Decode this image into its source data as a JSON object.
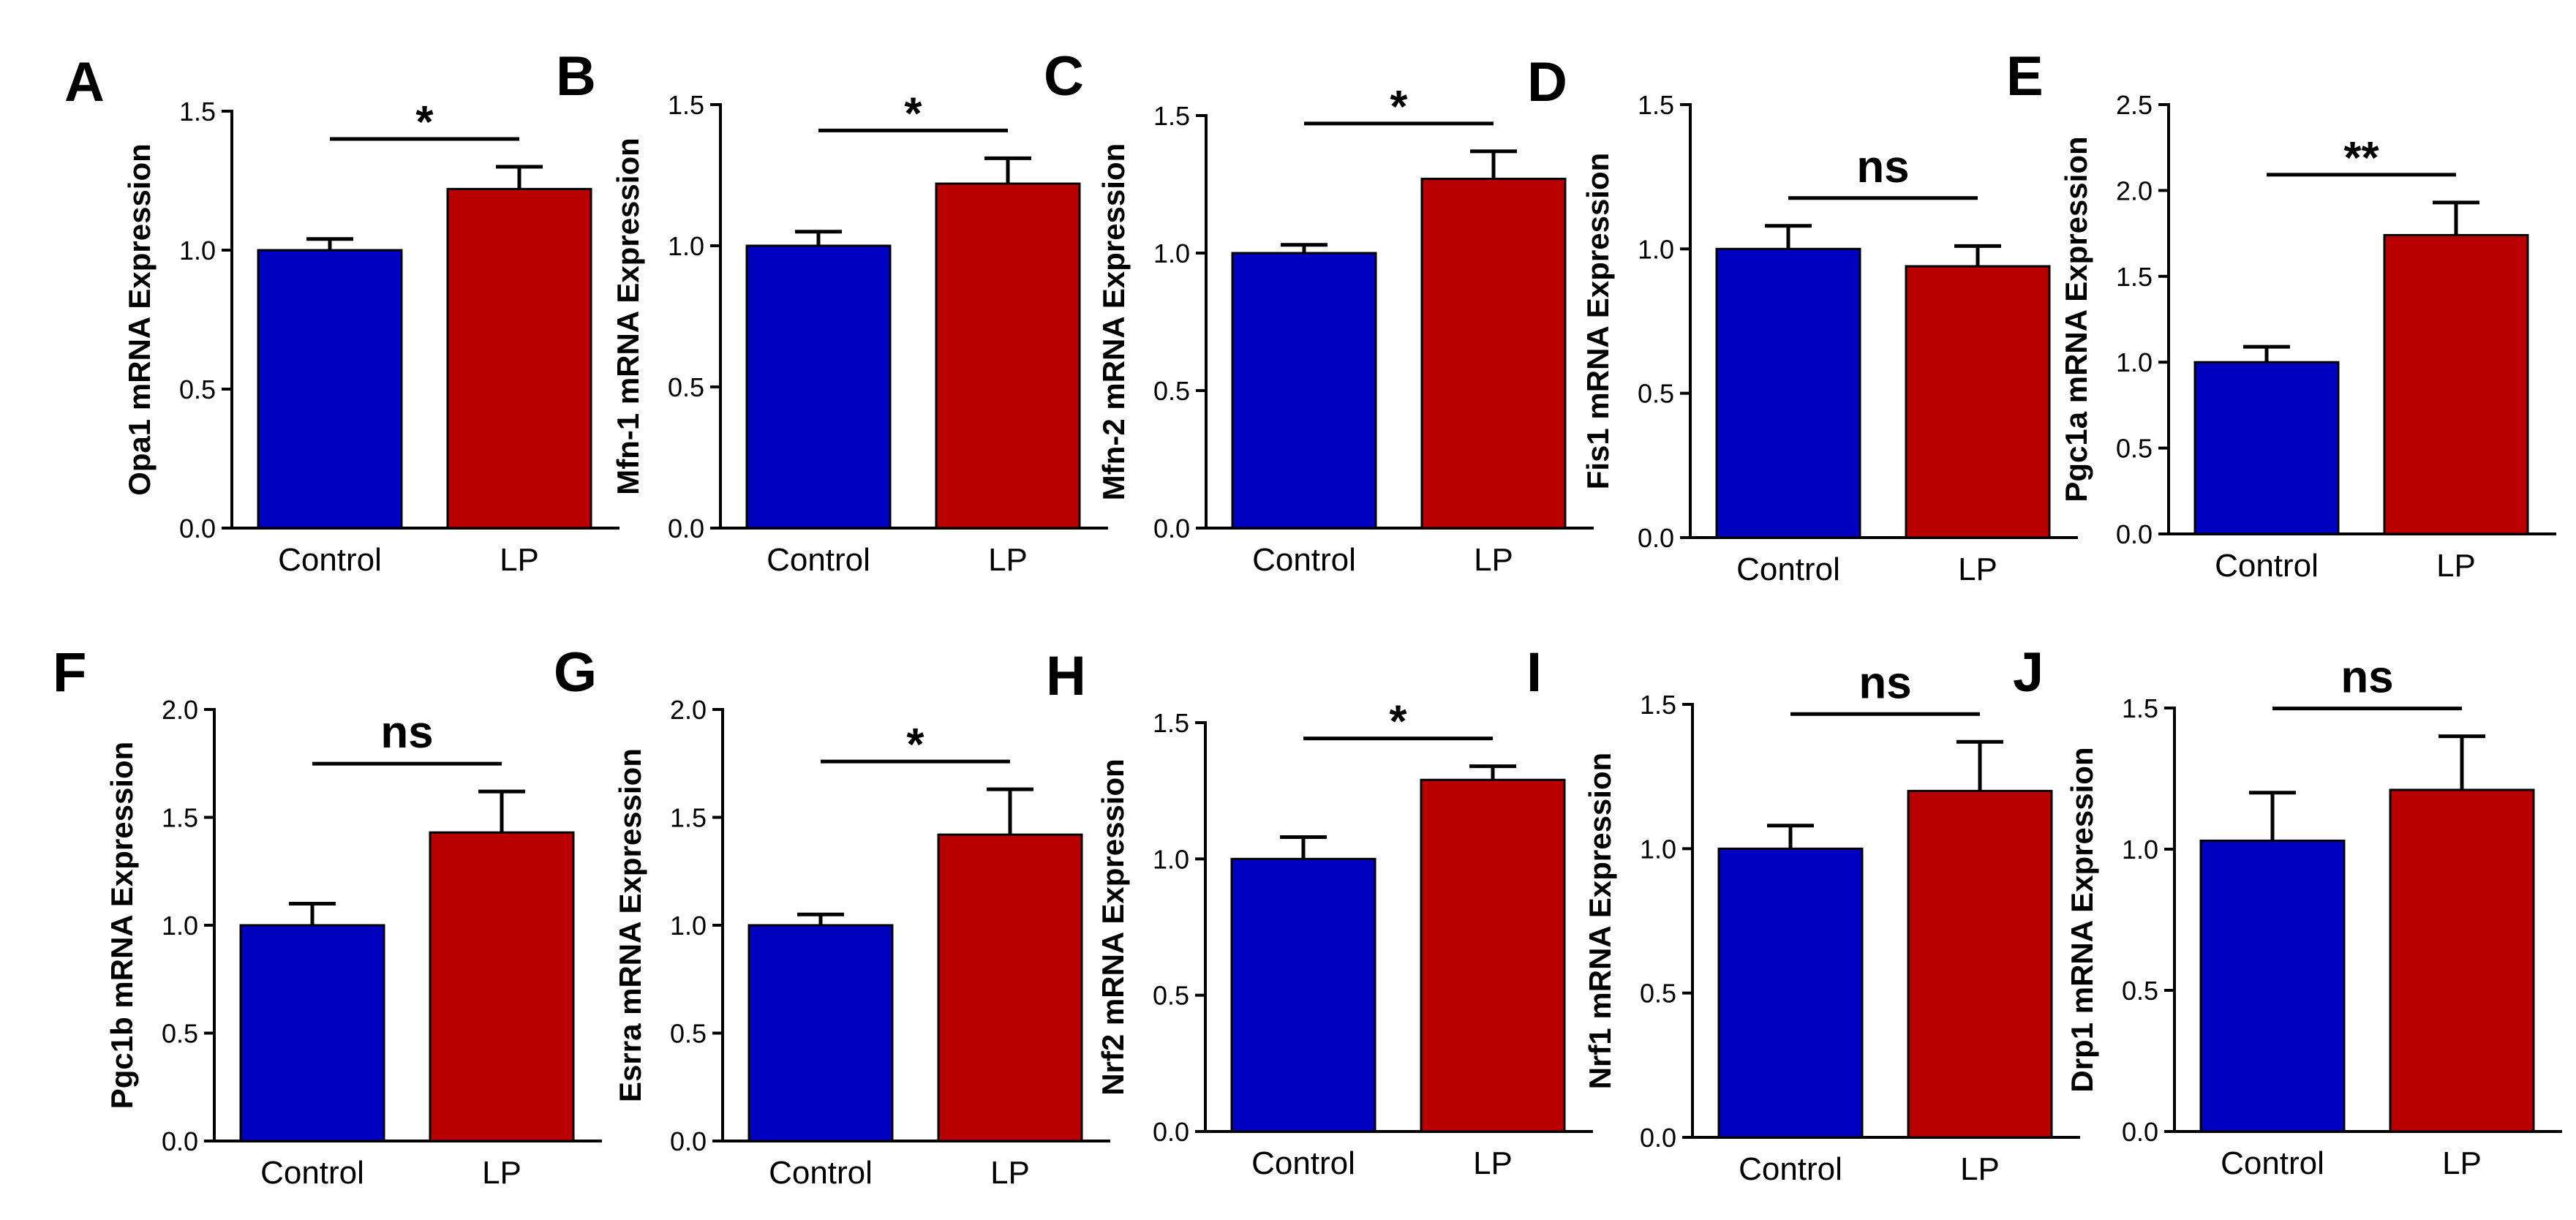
{
  "colors": {
    "control": "#0000c0",
    "lp": "#b80000",
    "axis": "#000000",
    "background": "#ffffff"
  },
  "chart_data": [
    {
      "type": "bar",
      "panel": "A",
      "ylabel": "Opa1 mRNA Expression",
      "categories": [
        "Control",
        "LP"
      ],
      "values": [
        1.0,
        1.22
      ],
      "errors": [
        0.04,
        0.08
      ],
      "ylim": [
        0,
        1.5
      ],
      "yticks": [
        "0.0",
        "0.5",
        "1.0",
        "1.5"
      ],
      "significance": "*"
    },
    {
      "type": "bar",
      "panel": "B",
      "ylabel": "Mfn-1 mRNA Expression",
      "categories": [
        "Control",
        "LP"
      ],
      "values": [
        1.0,
        1.22
      ],
      "errors": [
        0.05,
        0.09
      ],
      "ylim": [
        0,
        1.5
      ],
      "yticks": [
        "0.0",
        "0.5",
        "1.0",
        "1.5"
      ],
      "significance": "*"
    },
    {
      "type": "bar",
      "panel": "C",
      "ylabel": "Mfn-2 mRNA Expression",
      "categories": [
        "Control",
        "LP"
      ],
      "values": [
        1.0,
        1.27
      ],
      "errors": [
        0.03,
        0.1
      ],
      "ylim": [
        0,
        1.5
      ],
      "yticks": [
        "0.0",
        "0.5",
        "1.0",
        "1.5"
      ],
      "significance": "*"
    },
    {
      "type": "bar",
      "panel": "D",
      "ylabel": "Fis1 mRNA Expression",
      "categories": [
        "Control",
        "LP"
      ],
      "values": [
        1.0,
        0.94
      ],
      "errors": [
        0.08,
        0.07
      ],
      "ylim": [
        0,
        1.5
      ],
      "yticks": [
        "0.0",
        "0.5",
        "1.0",
        "1.5"
      ],
      "significance": "ns"
    },
    {
      "type": "bar",
      "panel": "E",
      "ylabel": "Pgc1a mRNA Expression",
      "categories": [
        "Control",
        "LP"
      ],
      "values": [
        1.0,
        1.74
      ],
      "errors": [
        0.09,
        0.19
      ],
      "ylim": [
        0,
        2.5
      ],
      "yticks": [
        "0.0",
        "0.5",
        "1.0",
        "1.5",
        "2.0",
        "2.5"
      ],
      "significance": "**"
    },
    {
      "type": "bar",
      "panel": "F",
      "ylabel": "Pgc1b mRNA Expression",
      "categories": [
        "Control",
        "LP"
      ],
      "values": [
        1.0,
        1.43
      ],
      "errors": [
        0.1,
        0.19
      ],
      "ylim": [
        0,
        2.0
      ],
      "yticks": [
        "0.0",
        "0.5",
        "1.0",
        "1.5",
        "2.0"
      ],
      "significance": "ns"
    },
    {
      "type": "bar",
      "panel": "G",
      "ylabel": "Esrra mRNA Expression",
      "categories": [
        "Control",
        "LP"
      ],
      "values": [
        1.0,
        1.42
      ],
      "errors": [
        0.05,
        0.21
      ],
      "ylim": [
        0,
        2.0
      ],
      "yticks": [
        "0.0",
        "0.5",
        "1.0",
        "1.5",
        "2.0"
      ],
      "significance": "*"
    },
    {
      "type": "bar",
      "panel": "H",
      "ylabel": "Nrf2 mRNA Expression",
      "categories": [
        "Control",
        "LP"
      ],
      "values": [
        1.0,
        1.29
      ],
      "errors": [
        0.08,
        0.05
      ],
      "ylim": [
        0,
        1.5
      ],
      "yticks": [
        "0.0",
        "0.5",
        "1.0",
        "1.5"
      ],
      "significance": "*"
    },
    {
      "type": "bar",
      "panel": "I",
      "ylabel": "Nrf1 mRNA Expression",
      "categories": [
        "Control",
        "LP"
      ],
      "values": [
        1.0,
        1.2
      ],
      "errors": [
        0.08,
        0.17
      ],
      "ylim": [
        0,
        1.5
      ],
      "yticks": [
        "0.0",
        "0.5",
        "1.0",
        "1.5"
      ],
      "significance": "ns"
    },
    {
      "type": "bar",
      "panel": "J",
      "ylabel": "Drp1 mRNA Expression",
      "categories": [
        "Control",
        "LP"
      ],
      "values": [
        1.03,
        1.21
      ],
      "errors": [
        0.17,
        0.19
      ],
      "ylim": [
        0,
        1.5
      ],
      "yticks": [
        "0.0",
        "0.5",
        "1.0",
        "1.5"
      ],
      "significance": "ns"
    }
  ]
}
